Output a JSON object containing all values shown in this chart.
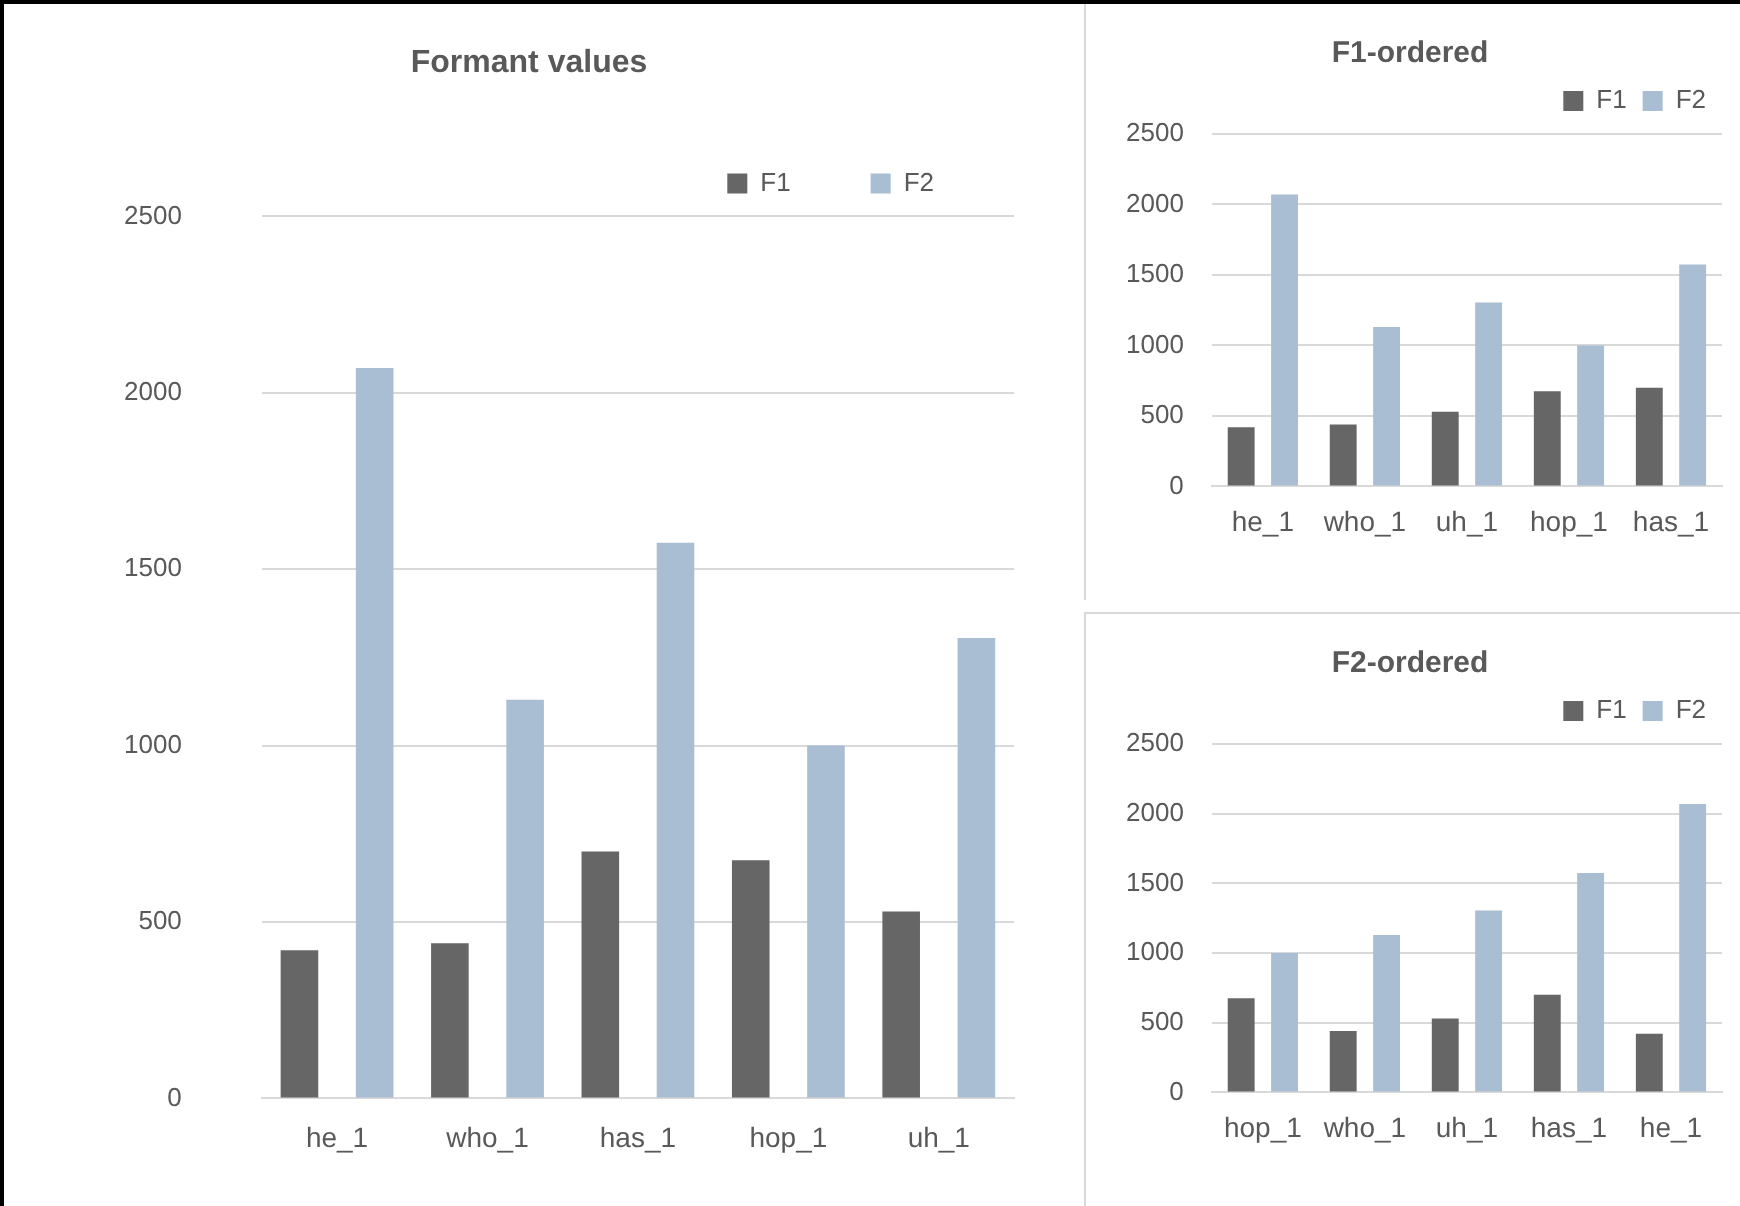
{
  "chart_data": [
    {
      "type": "bar",
      "title": "Formant values",
      "categories": [
        "he_1",
        "who_1",
        "has_1",
        "hop_1",
        "uh_1"
      ],
      "series": [
        {
          "name": "F1",
          "color": "#666666",
          "values": [
            420,
            440,
            700,
            675,
            530
          ]
        },
        {
          "name": "F2",
          "color": "#a9bdd3",
          "values": [
            2070,
            1130,
            1575,
            1000,
            1305
          ]
        }
      ],
      "ylim": [
        0,
        2500
      ],
      "yticks": [
        0,
        500,
        1000,
        1500,
        2000,
        2500
      ],
      "grid": "y",
      "legend": "top right"
    },
    {
      "type": "bar",
      "title": "F1-ordered",
      "categories": [
        "he_1",
        "who_1",
        "uh_1",
        "hop_1",
        "has_1"
      ],
      "series": [
        {
          "name": "F1",
          "color": "#666666",
          "values": [
            420,
            440,
            530,
            675,
            700
          ]
        },
        {
          "name": "F2",
          "color": "#a9bdd3",
          "values": [
            2070,
            1130,
            1305,
            1000,
            1575
          ]
        }
      ],
      "ylim": [
        0,
        2500
      ],
      "yticks": [
        0,
        500,
        1000,
        1500,
        2000,
        2500
      ],
      "grid": "y",
      "legend": "top right"
    },
    {
      "type": "bar",
      "title": "F2-ordered",
      "categories": [
        "hop_1",
        "who_1",
        "uh_1",
        "has_1",
        "he_1"
      ],
      "series": [
        {
          "name": "F1",
          "color": "#666666",
          "values": [
            675,
            440,
            530,
            700,
            420
          ]
        },
        {
          "name": "F2",
          "color": "#a9bdd3",
          "values": [
            1000,
            1130,
            1305,
            1575,
            2070
          ]
        }
      ],
      "ylim": [
        0,
        2500
      ],
      "yticks": [
        0,
        500,
        1000,
        1500,
        2000,
        2500
      ],
      "grid": "y",
      "legend": "top right"
    }
  ]
}
